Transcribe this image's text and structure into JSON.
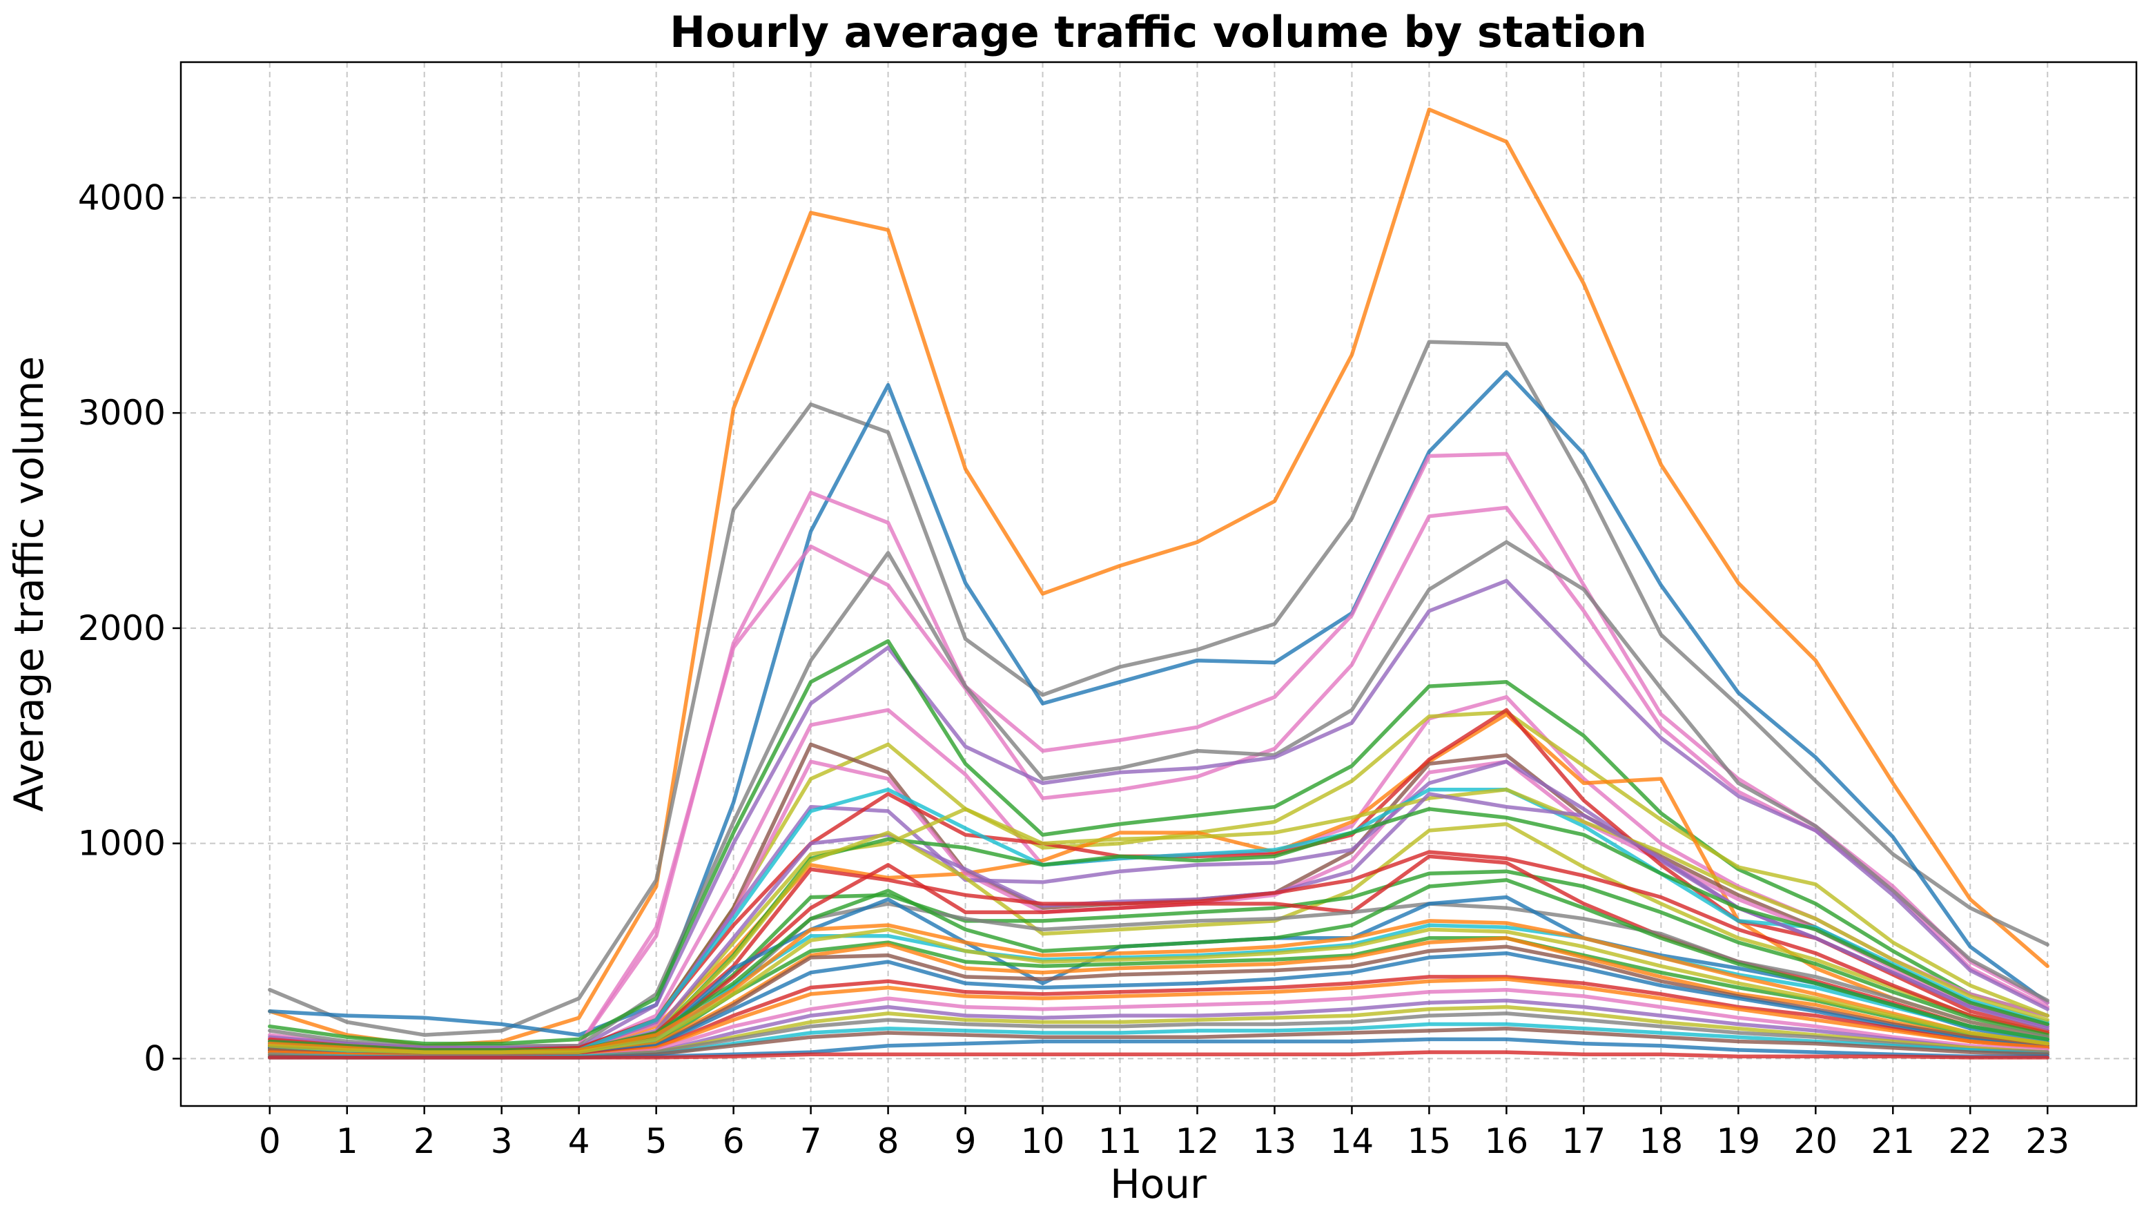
{
  "chart_data": {
    "type": "line",
    "title": "Hourly average traffic volume by station",
    "xlabel": "Hour",
    "ylabel": "Average traffic volume",
    "x": [
      0,
      1,
      2,
      3,
      4,
      5,
      6,
      7,
      8,
      9,
      10,
      11,
      12,
      13,
      14,
      15,
      16,
      17,
      18,
      19,
      20,
      21,
      22,
      23
    ],
    "xlim": [
      -1.15,
      24.15
    ],
    "ylim": [
      -220,
      4630
    ],
    "yticks": [
      0,
      1000,
      2000,
      3000,
      4000
    ],
    "grid": true,
    "series": [
      {
        "color": "#ff7f0e",
        "values": [
          220,
          110,
          60,
          80,
          190,
          800,
          3020,
          3930,
          3850,
          2740,
          2160,
          2290,
          2400,
          2590,
          3270,
          4410,
          4260,
          3600,
          2760,
          2210,
          1850,
          1280,
          740,
          430
        ]
      },
      {
        "color": "#7f7f7f",
        "values": [
          320,
          170,
          110,
          130,
          280,
          830,
          2550,
          3040,
          2910,
          1950,
          1690,
          1820,
          1900,
          2020,
          2510,
          3330,
          3320,
          2680,
          1970,
          1640,
          1290,
          950,
          700,
          530
        ]
      },
      {
        "color": "#1f77b4",
        "values": [
          220,
          200,
          190,
          160,
          110,
          250,
          1190,
          2450,
          3130,
          2210,
          1650,
          1750,
          1850,
          1840,
          2070,
          2820,
          3190,
          2810,
          2200,
          1700,
          1400,
          1030,
          520,
          260
        ]
      },
      {
        "color": "#e377c2",
        "values": [
          110,
          70,
          50,
          50,
          60,
          570,
          1930,
          2630,
          2490,
          1730,
          1430,
          1480,
          1540,
          1680,
          2060,
          2800,
          2810,
          2200,
          1600,
          1300,
          1080,
          800,
          450,
          260
        ]
      },
      {
        "color": "#e377c2",
        "values": [
          90,
          60,
          40,
          40,
          60,
          610,
          1910,
          2380,
          2200,
          1720,
          1210,
          1250,
          1310,
          1440,
          1830,
          2520,
          2560,
          2080,
          1540,
          1240,
          1060,
          780,
          420,
          240
        ]
      },
      {
        "color": "#7f7f7f",
        "values": [
          130,
          80,
          60,
          60,
          60,
          300,
          1100,
          1850,
          2350,
          1730,
          1300,
          1350,
          1430,
          1410,
          1620,
          2180,
          2400,
          2180,
          1720,
          1280,
          1080,
          780,
          460,
          270
        ]
      },
      {
        "color": "#9467bd",
        "values": [
          100,
          70,
          50,
          50,
          50,
          250,
          1000,
          1650,
          1910,
          1450,
          1280,
          1330,
          1350,
          1400,
          1560,
          2080,
          2220,
          1850,
          1490,
          1220,
          1060,
          760,
          410,
          230
        ]
      },
      {
        "color": "#2ca02c",
        "values": [
          150,
          100,
          70,
          70,
          90,
          280,
          1050,
          1750,
          1940,
          1370,
          1040,
          1090,
          1130,
          1170,
          1360,
          1730,
          1750,
          1500,
          1140,
          880,
          720,
          500,
          300,
          200
        ]
      },
      {
        "color": "#e377c2",
        "values": [
          90,
          60,
          40,
          40,
          40,
          200,
          840,
          1550,
          1620,
          1320,
          900,
          930,
          950,
          960,
          1080,
          1580,
          1680,
          1300,
          1000,
          800,
          650,
          460,
          300,
          200
        ]
      },
      {
        "color": "#bcbd22",
        "values": [
          80,
          50,
          40,
          40,
          40,
          180,
          700,
          1300,
          1460,
          1160,
          980,
          1000,
          1050,
          1100,
          1290,
          1590,
          1610,
          1360,
          1110,
          890,
          810,
          540,
          340,
          200
        ]
      },
      {
        "color": "#ff7f0e",
        "values": [
          60,
          40,
          30,
          30,
          40,
          150,
          500,
          900,
          840,
          860,
          920,
          1050,
          1050,
          960,
          1100,
          1380,
          1600,
          1280,
          1300,
          640,
          420,
          280,
          170,
          100
        ]
      },
      {
        "color": "#8c564b",
        "values": [
          70,
          50,
          40,
          40,
          50,
          180,
          700,
          1460,
          1330,
          870,
          700,
          720,
          740,
          770,
          960,
          1370,
          1410,
          1130,
          940,
          760,
          610,
          430,
          260,
          160
        ]
      },
      {
        "color": "#e377c2",
        "values": [
          60,
          40,
          30,
          30,
          40,
          160,
          680,
          1380,
          1300,
          860,
          680,
          700,
          720,
          760,
          920,
          1330,
          1380,
          1100,
          920,
          740,
          600,
          420,
          250,
          150
        ]
      },
      {
        "color": "#9467bd",
        "values": [
          80,
          50,
          40,
          40,
          40,
          170,
          680,
          1170,
          1150,
          830,
          820,
          870,
          900,
          910,
          970,
          1280,
          1380,
          1160,
          920,
          700,
          560,
          400,
          240,
          150
        ]
      },
      {
        "color": "#d62728",
        "values": [
          90,
          60,
          40,
          40,
          50,
          180,
          620,
          1000,
          1230,
          1040,
          1000,
          940,
          940,
          950,
          1040,
          1390,
          1620,
          1200,
          900,
          640,
          560,
          390,
          220,
          130
        ]
      },
      {
        "color": "#17becf",
        "values": [
          70,
          40,
          30,
          30,
          40,
          180,
          650,
          1150,
          1250,
          1070,
          900,
          930,
          950,
          970,
          1050,
          1250,
          1250,
          1080,
          860,
          640,
          610,
          440,
          270,
          170
        ]
      },
      {
        "color": "#bcbd22",
        "values": [
          60,
          40,
          30,
          30,
          30,
          120,
          540,
          950,
          1000,
          1160,
          1000,
          1020,
          1030,
          1050,
          1120,
          1210,
          1250,
          1100,
          960,
          790,
          650,
          460,
          290,
          180
        ]
      },
      {
        "color": "#9467bd",
        "values": [
          70,
          40,
          30,
          30,
          30,
          130,
          560,
          1000,
          1040,
          880,
          710,
          730,
          740,
          770,
          870,
          1230,
          1170,
          1130,
          930,
          700,
          560,
          400,
          240,
          140
        ]
      },
      {
        "color": "#2ca02c",
        "values": [
          60,
          40,
          30,
          30,
          30,
          110,
          480,
          930,
          1020,
          980,
          900,
          940,
          920,
          940,
          1050,
          1160,
          1120,
          1040,
          860,
          700,
          600,
          430,
          260,
          160
        ]
      },
      {
        "color": "#bcbd22",
        "values": [
          50,
          30,
          20,
          20,
          30,
          110,
          470,
          920,
          1050,
          840,
          580,
          600,
          620,
          640,
          780,
          1060,
          1090,
          890,
          720,
          560,
          460,
          330,
          200,
          120
        ]
      },
      {
        "color": "#d62728",
        "values": [
          60,
          40,
          30,
          30,
          30,
          120,
          430,
          880,
          830,
          760,
          720,
          720,
          730,
          770,
          830,
          960,
          930,
          850,
          750,
          600,
          490,
          340,
          200,
          120
        ]
      },
      {
        "color": "#2ca02c",
        "values": [
          50,
          30,
          20,
          20,
          30,
          100,
          390,
          750,
          760,
          640,
          640,
          660,
          680,
          700,
          750,
          860,
          870,
          800,
          680,
          540,
          440,
          310,
          190,
          110
        ]
      },
      {
        "color": "#d62728",
        "values": [
          50,
          30,
          20,
          20,
          30,
          90,
          380,
          700,
          900,
          680,
          680,
          700,
          720,
          720,
          680,
          940,
          910,
          720,
          570,
          450,
          360,
          260,
          150,
          90
        ]
      },
      {
        "color": "#7f7f7f",
        "values": [
          40,
          30,
          20,
          20,
          20,
          80,
          330,
          650,
          720,
          650,
          600,
          620,
          640,
          650,
          680,
          720,
          700,
          650,
          580,
          450,
          380,
          280,
          170,
          100
        ]
      },
      {
        "color": "#1f77b4",
        "values": [
          50,
          30,
          20,
          20,
          20,
          90,
          420,
          600,
          740,
          540,
          350,
          520,
          540,
          560,
          560,
          720,
          750,
          560,
          480,
          420,
          350,
          250,
          140,
          80
        ]
      },
      {
        "color": "#17becf",
        "values": [
          40,
          30,
          20,
          20,
          20,
          80,
          340,
          570,
          570,
          500,
          460,
          470,
          480,
          500,
          530,
          620,
          610,
          560,
          470,
          390,
          330,
          240,
          150,
          90
        ]
      },
      {
        "color": "#2ca02c",
        "values": [
          40,
          20,
          20,
          20,
          20,
          70,
          300,
          500,
          540,
          450,
          430,
          440,
          450,
          460,
          480,
          560,
          560,
          480,
          400,
          330,
          270,
          190,
          110,
          70
        ]
      },
      {
        "color": "#ff7f0e",
        "values": [
          40,
          20,
          20,
          20,
          20,
          70,
          260,
          480,
          530,
          420,
          400,
          420,
          430,
          440,
          470,
          540,
          560,
          470,
          380,
          300,
          250,
          170,
          100,
          60
        ]
      },
      {
        "color": "#8c564b",
        "values": [
          40,
          20,
          20,
          20,
          20,
          60,
          250,
          470,
          480,
          380,
          370,
          390,
          400,
          410,
          430,
          500,
          520,
          450,
          360,
          290,
          230,
          160,
          100,
          60
        ]
      },
      {
        "color": "#1f77b4",
        "values": [
          30,
          20,
          10,
          10,
          20,
          60,
          230,
          400,
          450,
          350,
          330,
          340,
          350,
          370,
          400,
          470,
          490,
          420,
          340,
          280,
          220,
          150,
          90,
          50
        ]
      },
      {
        "color": "#d62728",
        "values": [
          30,
          20,
          10,
          10,
          20,
          50,
          200,
          330,
          360,
          310,
          300,
          310,
          320,
          330,
          350,
          380,
          380,
          350,
          300,
          240,
          200,
          140,
          80,
          50
        ]
      },
      {
        "color": "#ff7f0e",
        "values": [
          30,
          20,
          10,
          10,
          10,
          50,
          180,
          300,
          330,
          290,
          280,
          290,
          300,
          310,
          330,
          360,
          370,
          330,
          280,
          230,
          180,
          130,
          80,
          50
        ]
      },
      {
        "color": "#e377c2",
        "values": [
          20,
          10,
          10,
          10,
          10,
          40,
          150,
          230,
          280,
          240,
          230,
          240,
          250,
          260,
          280,
          310,
          320,
          290,
          240,
          190,
          150,
          100,
          60,
          40
        ]
      },
      {
        "color": "#9467bd",
        "values": [
          20,
          10,
          10,
          10,
          10,
          30,
          120,
          200,
          240,
          200,
          190,
          200,
          200,
          210,
          230,
          260,
          270,
          240,
          200,
          160,
          130,
          90,
          50,
          30
        ]
      },
      {
        "color": "#bcbd22",
        "values": [
          20,
          10,
          10,
          10,
          10,
          30,
          100,
          170,
          210,
          180,
          170,
          170,
          180,
          190,
          200,
          230,
          240,
          210,
          170,
          140,
          110,
          80,
          50,
          30
        ]
      },
      {
        "color": "#7f7f7f",
        "values": [
          20,
          10,
          10,
          10,
          10,
          30,
          90,
          150,
          180,
          160,
          150,
          150,
          160,
          160,
          170,
          200,
          210,
          180,
          150,
          120,
          100,
          70,
          40,
          30
        ]
      },
      {
        "color": "#17becf",
        "values": [
          10,
          10,
          5,
          5,
          10,
          20,
          70,
          120,
          140,
          130,
          120,
          120,
          130,
          130,
          140,
          160,
          160,
          140,
          120,
          100,
          80,
          60,
          40,
          20
        ]
      },
      {
        "color": "#8c564b",
        "values": [
          10,
          5,
          5,
          5,
          5,
          20,
          60,
          100,
          120,
          110,
          100,
          100,
          100,
          110,
          120,
          130,
          140,
          120,
          100,
          80,
          70,
          50,
          30,
          20
        ]
      },
      {
        "color": "#1f77b4",
        "values": [
          5,
          5,
          5,
          5,
          5,
          10,
          20,
          30,
          60,
          70,
          80,
          80,
          80,
          80,
          80,
          90,
          90,
          70,
          60,
          40,
          30,
          20,
          10,
          10
        ]
      },
      {
        "color": "#d62728",
        "values": [
          5,
          5,
          5,
          5,
          5,
          5,
          10,
          20,
          20,
          20,
          20,
          20,
          20,
          20,
          20,
          30,
          30,
          20,
          20,
          10,
          10,
          10,
          5,
          5
        ]
      },
      {
        "color": "#2ca02c",
        "values": [
          80,
          60,
          40,
          40,
          40,
          120,
          350,
          650,
          780,
          600,
          500,
          520,
          540,
          560,
          620,
          800,
          830,
          700,
          560,
          440,
          350,
          250,
          150,
          90
        ]
      },
      {
        "color": "#ff7f0e",
        "values": [
          70,
          50,
          30,
          30,
          40,
          110,
          320,
          600,
          620,
          540,
          480,
          490,
          500,
          520,
          560,
          640,
          630,
          560,
          470,
          380,
          300,
          210,
          120,
          70
        ]
      },
      {
        "color": "#bcbd22",
        "values": [
          60,
          40,
          30,
          30,
          30,
          90,
          300,
          550,
          600,
          500,
          450,
          460,
          470,
          490,
          520,
          600,
          590,
          520,
          430,
          350,
          280,
          200,
          120,
          70
        ]
      }
    ]
  }
}
